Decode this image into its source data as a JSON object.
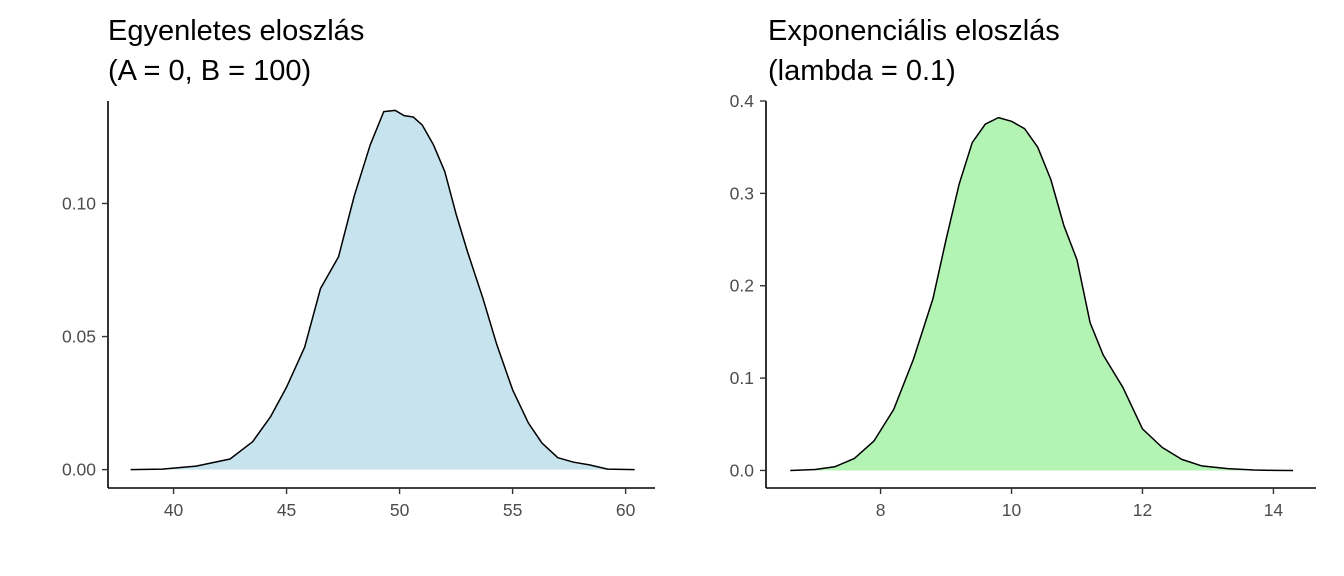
{
  "chart_data": [
    {
      "type": "area",
      "title": "Egyenletes eloszlás",
      "subtitle": "(A = 0, B = 100)",
      "xlabel": "",
      "ylabel": "",
      "fill_color": "#c6e3ee",
      "line_color": "#000000",
      "xlim": [
        37.1,
        61.3
      ],
      "ylim": [
        -0.0069,
        0.1385
      ],
      "x_ticks": [
        40,
        45,
        50,
        55,
        60
      ],
      "x_tick_labels": [
        "40",
        "45",
        "50",
        "55",
        "60"
      ],
      "y_ticks": [
        0,
        0.05,
        0.1
      ],
      "y_tick_labels": [
        "0.00",
        "0.05",
        "0.10"
      ],
      "grid": false,
      "x": [
        38.1,
        39.5,
        41.0,
        42.5,
        43.5,
        44.3,
        45.0,
        45.8,
        46.5,
        47.3,
        48.0,
        48.7,
        49.3,
        49.8,
        50.2,
        50.6,
        51.0,
        51.5,
        52.0,
        52.5,
        53.0,
        53.7,
        54.3,
        55.0,
        55.7,
        56.3,
        57.0,
        57.7,
        58.4,
        59.2,
        60.4
      ],
      "y": [
        0.0,
        0.0002,
        0.0013,
        0.004,
        0.0105,
        0.02,
        0.031,
        0.046,
        0.068,
        0.08,
        0.103,
        0.122,
        0.1345,
        0.135,
        0.133,
        0.1325,
        0.1295,
        0.122,
        0.112,
        0.096,
        0.082,
        0.064,
        0.047,
        0.03,
        0.0175,
        0.01,
        0.0045,
        0.0028,
        0.0018,
        0.0002,
        0.0
      ]
    },
    {
      "type": "area",
      "title": "Exponenciális eloszlás",
      "subtitle": "(lambda = 0.1)",
      "xlabel": "",
      "ylabel": "",
      "fill_color": "#b3f3b3",
      "line_color": "#000000",
      "xlim": [
        6.25,
        14.65
      ],
      "ylim": [
        -0.019,
        0.4
      ],
      "x_ticks": [
        8,
        10,
        12,
        14
      ],
      "x_tick_labels": [
        "8",
        "10",
        "12",
        "14"
      ],
      "y_ticks": [
        0,
        0.1,
        0.2,
        0.3,
        0.4
      ],
      "y_tick_labels": [
        "0.0",
        "0.1",
        "0.2",
        "0.3",
        "0.4"
      ],
      "grid": false,
      "x": [
        6.62,
        7.0,
        7.3,
        7.6,
        7.9,
        8.2,
        8.5,
        8.8,
        9.0,
        9.2,
        9.4,
        9.6,
        9.8,
        10.0,
        10.2,
        10.4,
        10.6,
        10.8,
        11.0,
        11.2,
        11.4,
        11.7,
        12.0,
        12.3,
        12.6,
        12.9,
        13.3,
        13.7,
        14.0,
        14.3
      ],
      "y": [
        0.0,
        0.001,
        0.004,
        0.013,
        0.032,
        0.066,
        0.12,
        0.186,
        0.25,
        0.31,
        0.355,
        0.375,
        0.382,
        0.378,
        0.37,
        0.35,
        0.315,
        0.265,
        0.228,
        0.16,
        0.125,
        0.09,
        0.045,
        0.025,
        0.012,
        0.005,
        0.002,
        0.0005,
        0.0001,
        0.0
      ]
    }
  ]
}
